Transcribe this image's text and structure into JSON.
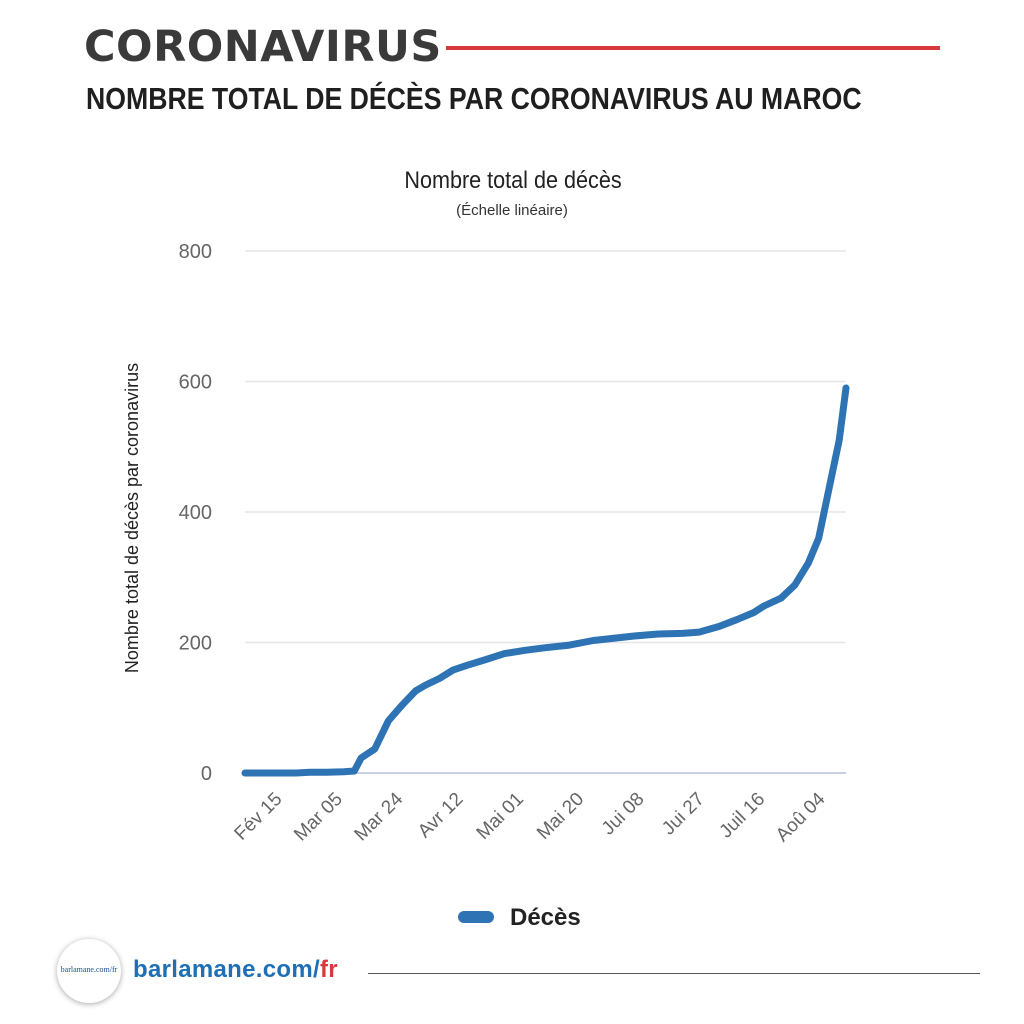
{
  "header": {
    "brand": "CORONAVIRUS",
    "headline": "NOMBRE TOTAL DE DÉCÈS PAR CORONAVIRUS AU MAROC"
  },
  "footer": {
    "logo_text": "barlamane.com/fr",
    "site_main": "barlamane.com/",
    "site_accent": "fr"
  },
  "colors": {
    "brand_text": "#3a3a3a",
    "rule_red": "#d9393c",
    "series_blue": "#2e74b5",
    "grid": "#e6e6e6",
    "site_blue": "#1e6fb4"
  },
  "chart_data": {
    "type": "line",
    "title": "Nombre total de décès",
    "subtitle": "(Échelle linéaire)",
    "xlabel": "",
    "ylabel": "Nombre total de décès par coronavirus",
    "ylim": [
      0,
      800
    ],
    "yticks": [
      0,
      200,
      400,
      600,
      800
    ],
    "xtick_labels": [
      "Fév 15",
      "Mar 05",
      "Mar 24",
      "Avr 12",
      "Mai 01",
      "Mai 20",
      "Jui 08",
      "Jui 27",
      "Juil 16",
      "Aoû 04"
    ],
    "grid": true,
    "legend_position": "bottom",
    "series": [
      {
        "name": "Décès",
        "color": "#2e74b5",
        "x": [
          "2020-02-15",
          "2020-02-22",
          "2020-03-01",
          "2020-03-05",
          "2020-03-10",
          "2020-03-15",
          "2020-03-18",
          "2020-03-20",
          "2020-03-24",
          "2020-03-28",
          "2020-04-01",
          "2020-04-05",
          "2020-04-08",
          "2020-04-12",
          "2020-04-16",
          "2020-04-20",
          "2020-04-25",
          "2020-05-01",
          "2020-05-07",
          "2020-05-13",
          "2020-05-20",
          "2020-05-27",
          "2020-06-03",
          "2020-06-08",
          "2020-06-15",
          "2020-06-22",
          "2020-06-27",
          "2020-07-03",
          "2020-07-08",
          "2020-07-13",
          "2020-07-16",
          "2020-07-21",
          "2020-07-25",
          "2020-07-29",
          "2020-08-01",
          "2020-08-04",
          "2020-08-07",
          "2020-08-09"
        ],
        "values": [
          0,
          0,
          0,
          1,
          1,
          2,
          3,
          23,
          37,
          80,
          104,
          126,
          135,
          145,
          158,
          165,
          173,
          183,
          188,
          192,
          196,
          203,
          207,
          210,
          213,
          214,
          216,
          225,
          235,
          246,
          256,
          268,
          288,
          322,
          360,
          435,
          510,
          590
        ]
      }
    ]
  }
}
